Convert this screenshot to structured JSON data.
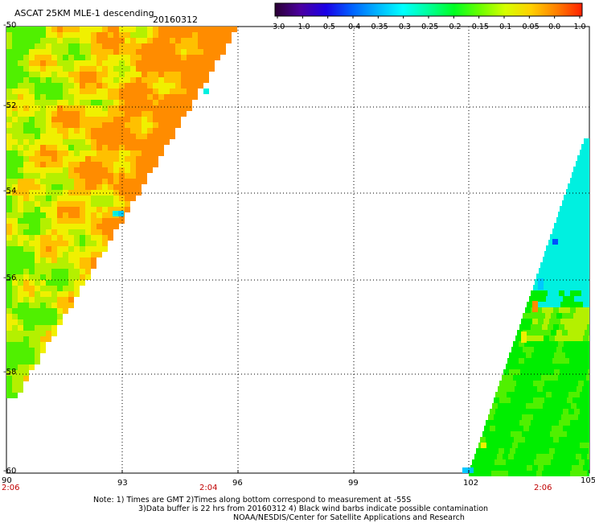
{
  "header": {
    "title": "ASCAT 25KM MLE-1 descending",
    "date": "20160312"
  },
  "colorbar": {
    "labels": [
      "-3.0",
      "-1.0",
      "-0.5",
      "-0.4",
      "-0.35",
      "-0.3",
      "-0.25",
      "-0.2",
      "-0.15",
      "-0.1",
      "-0.05",
      "0.0",
      "1.0"
    ],
    "colors": [
      "#2a0033",
      "#4b00a0",
      "#1a00e6",
      "#0060ff",
      "#00b4ff",
      "#00ffff",
      "#00ff9a",
      "#00ff22",
      "#6aff00",
      "#d6ff00",
      "#ffd000",
      "#ff8000",
      "#ff2000"
    ]
  },
  "axes": {
    "lat_labels": [
      "-50",
      "-52",
      "-54",
      "-56",
      "-58",
      "-60"
    ],
    "lon_labels": [
      "90",
      "93",
      "96",
      "99",
      "102",
      "105"
    ]
  },
  "times": [
    "2:06",
    "2:04",
    "2:06"
  ],
  "notes": [
    "Note: 1) Times are GMT 2)Times along bottom correspond to measurement at -55S",
    "3)Data buffer is 22 hrs from 20160312 4) Black wind barbs indicate possible contamination",
    "NOAA/NESDIS/Center for Satellite Applications and Research"
  ],
  "swath_colors": {
    "orange": "#ff8c00",
    "yellow_orange": "#ffc000",
    "yellow": "#f0f000",
    "yellow_green": "#b4f000",
    "green": "#50f000",
    "bright_green": "#00ee00",
    "cyan": "#00f0e0",
    "light_blue": "#00c8ff",
    "blue": "#0050ff"
  }
}
